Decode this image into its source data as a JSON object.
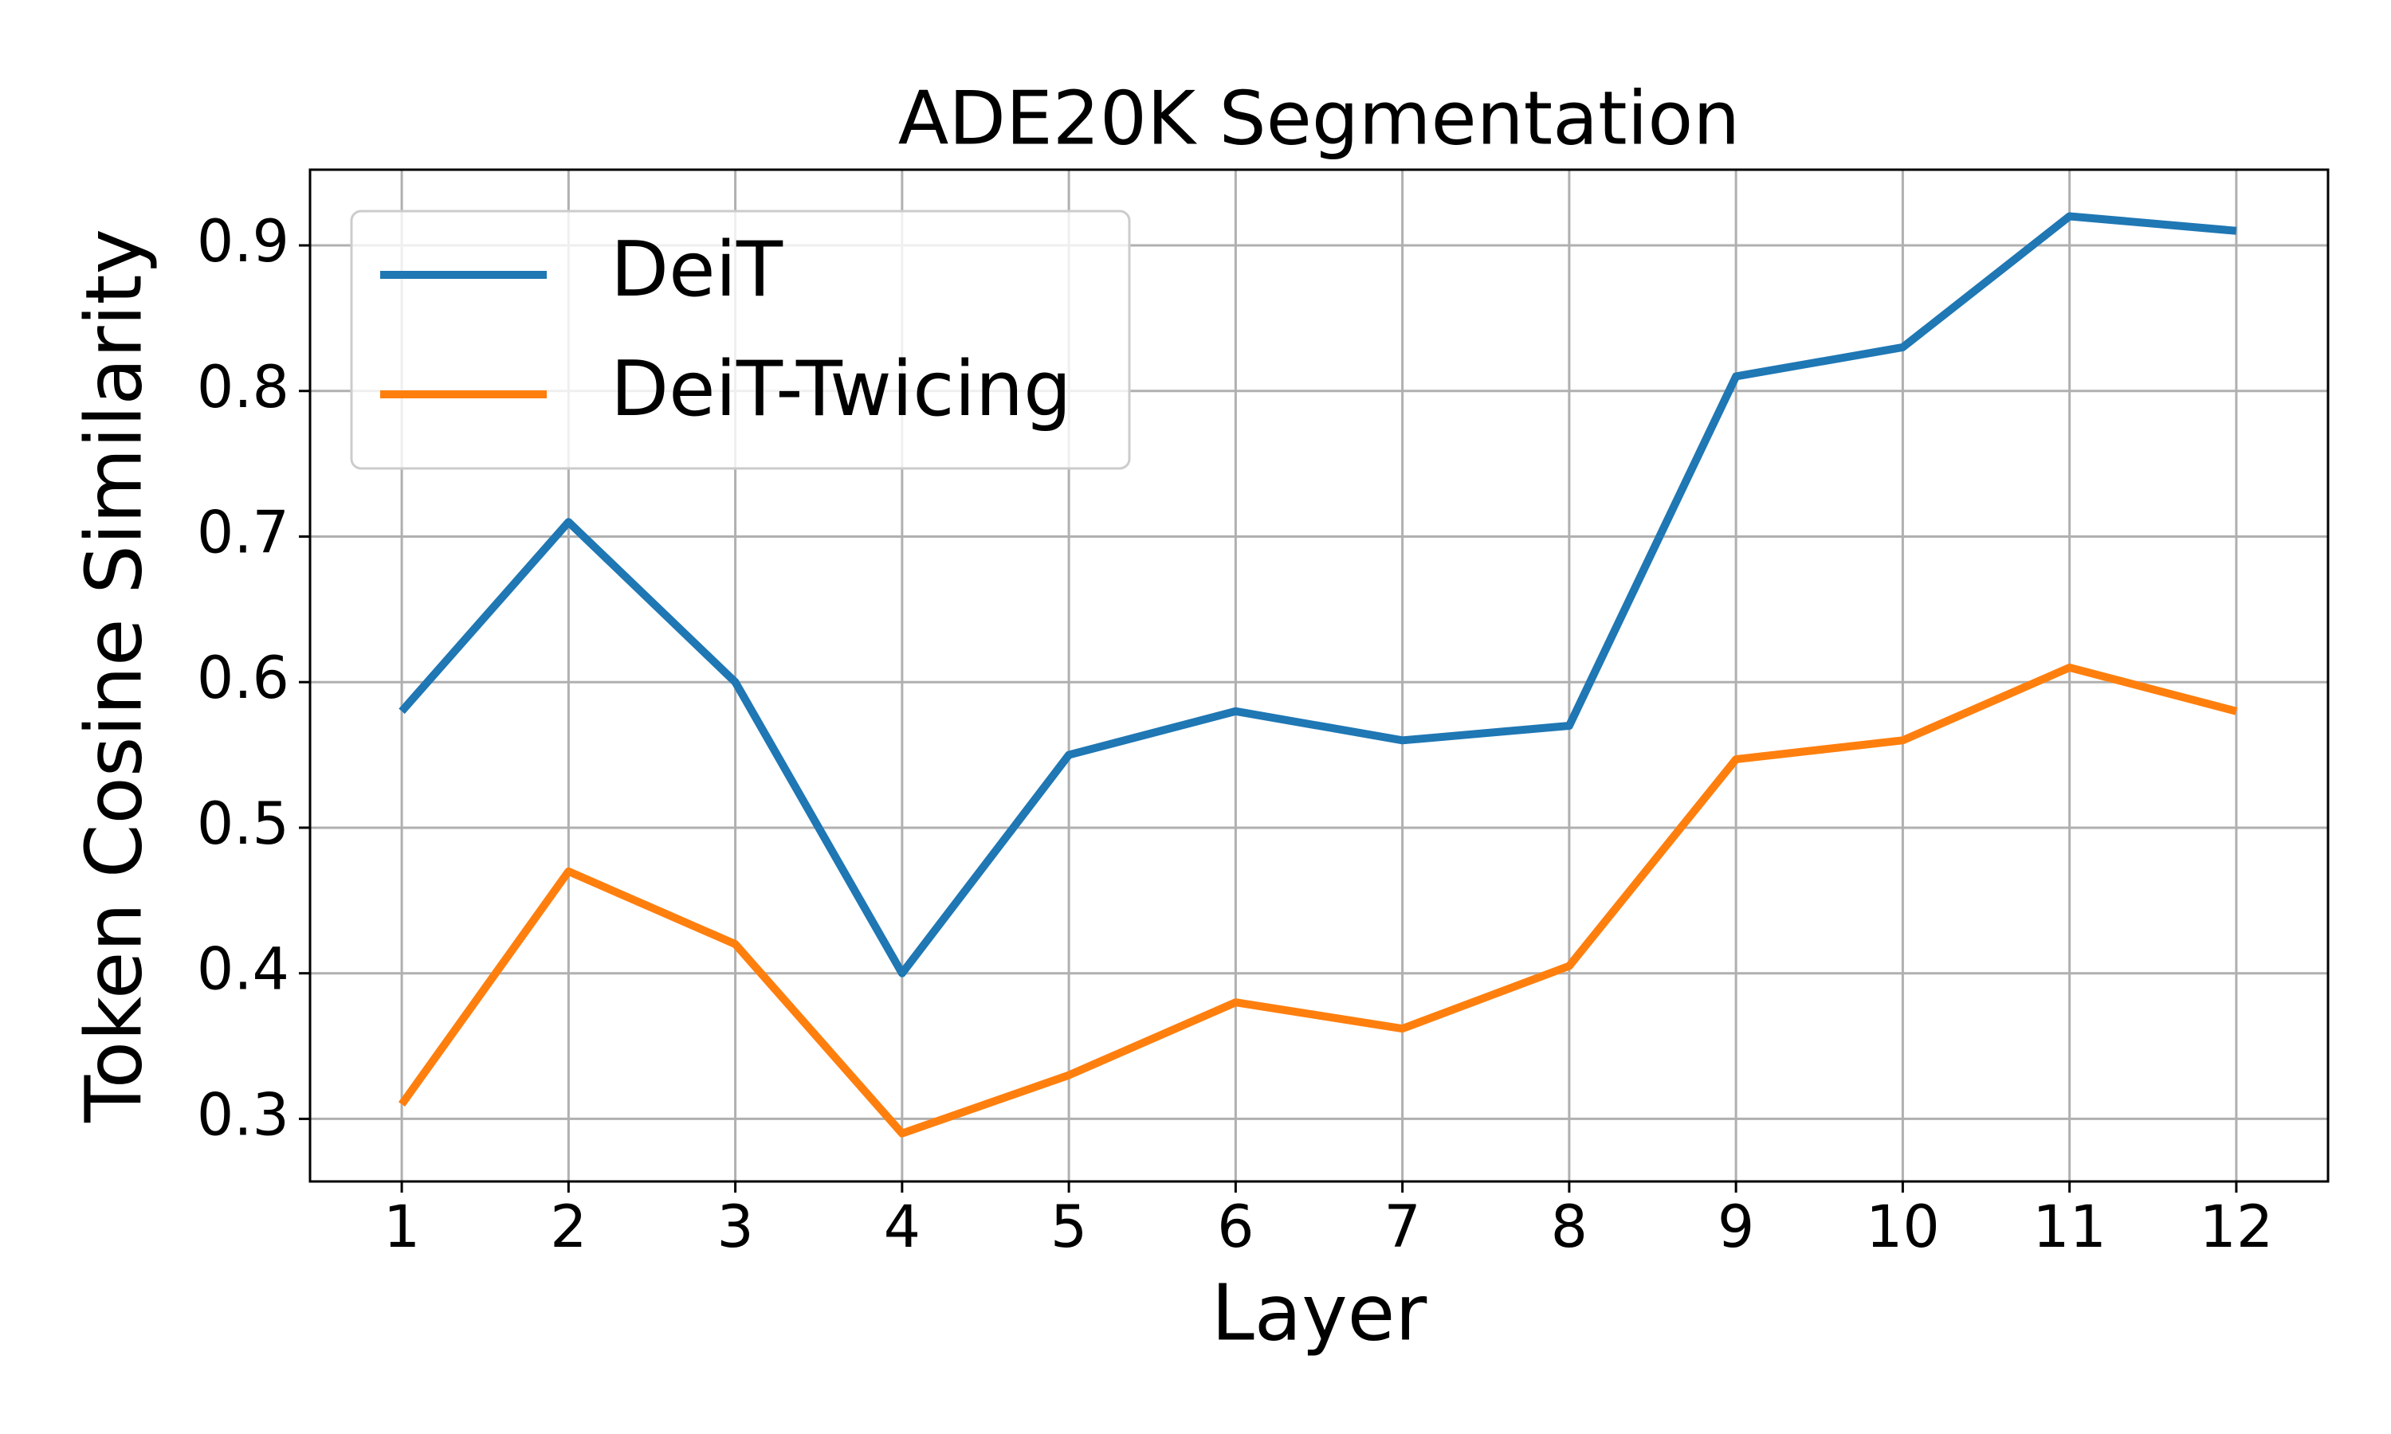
{
  "chart_data": {
    "type": "line",
    "title": "ADE20K Segmentation",
    "x_label": "Layer",
    "y_label": "Token Cosine Similarity",
    "x": [
      1,
      2,
      3,
      4,
      5,
      6,
      7,
      8,
      9,
      10,
      11,
      12
    ],
    "series": [
      {
        "name": "DeiT",
        "color": "#1f77b4",
        "values": [
          0.58,
          0.71,
          0.6,
          0.4,
          0.55,
          0.58,
          0.56,
          0.57,
          0.81,
          0.83,
          0.92,
          0.91
        ]
      },
      {
        "name": "DeiT-Twicing",
        "color": "#ff7f0e",
        "values": [
          0.31,
          0.47,
          0.42,
          0.29,
          0.33,
          0.38,
          0.362,
          0.405,
          0.547,
          0.56,
          0.61,
          0.58
        ]
      }
    ],
    "xlim": [
      0.45,
      12.55
    ],
    "xticks": [
      1,
      2,
      3,
      4,
      5,
      6,
      7,
      8,
      9,
      10,
      11,
      12
    ],
    "ylim": [
      0.257,
      0.952
    ],
    "yticks": [
      0.3,
      0.4,
      0.5,
      0.6,
      0.7,
      0.8,
      0.9
    ],
    "grid": true,
    "legend": "upper left"
  }
}
